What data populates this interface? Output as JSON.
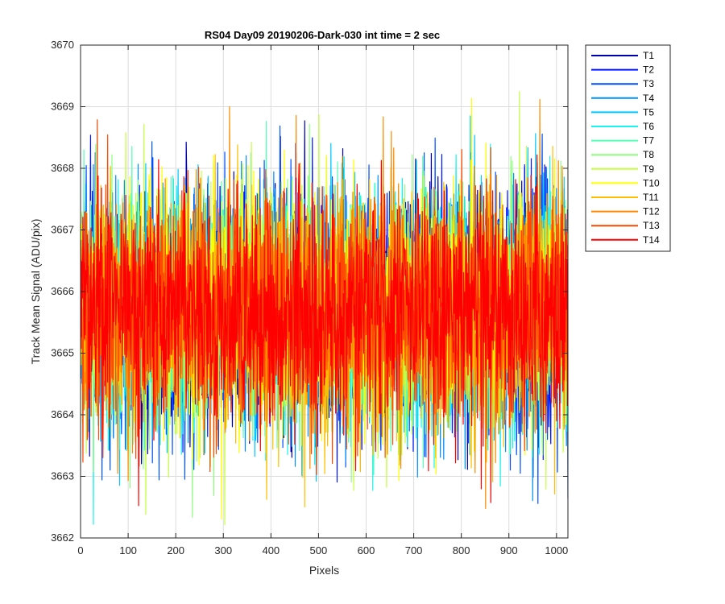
{
  "chart_data": {
    "type": "line",
    "title": "RS04 Day09 20190206-Dark-030 int time = 2 sec",
    "xlabel": "Pixels",
    "ylabel": "Track Mean Signal (ADU/pix)",
    "xlim": [
      0,
      1024
    ],
    "ylim": [
      3662,
      3670
    ],
    "xticks": [
      0,
      100,
      200,
      300,
      400,
      500,
      600,
      700,
      800,
      900,
      1000
    ],
    "yticks": [
      3662,
      3663,
      3664,
      3665,
      3666,
      3667,
      3668,
      3669,
      3670
    ],
    "grid": true,
    "legend_position": "outside-top-right",
    "series_style": {
      "center": 3665.7,
      "spread": 0.95,
      "n_points": 1024
    },
    "series": [
      {
        "name": "T1",
        "color": "#0000b3"
      },
      {
        "name": "T2",
        "color": "#0015ff"
      },
      {
        "name": "T3",
        "color": "#0050ff"
      },
      {
        "name": "T4",
        "color": "#0090ff"
      },
      {
        "name": "T5",
        "color": "#00c8ff"
      },
      {
        "name": "T6",
        "color": "#18f4ee"
      },
      {
        "name": "T7",
        "color": "#55ffb5"
      },
      {
        "name": "T8",
        "color": "#8dff7d"
      },
      {
        "name": "T9",
        "color": "#c6ff45"
      },
      {
        "name": "T10",
        "color": "#ffff00"
      },
      {
        "name": "T11",
        "color": "#ffbf00"
      },
      {
        "name": "T12",
        "color": "#ff8a00"
      },
      {
        "name": "T13",
        "color": "#ff4800"
      },
      {
        "name": "T14",
        "color": "#ff0000"
      }
    ]
  }
}
